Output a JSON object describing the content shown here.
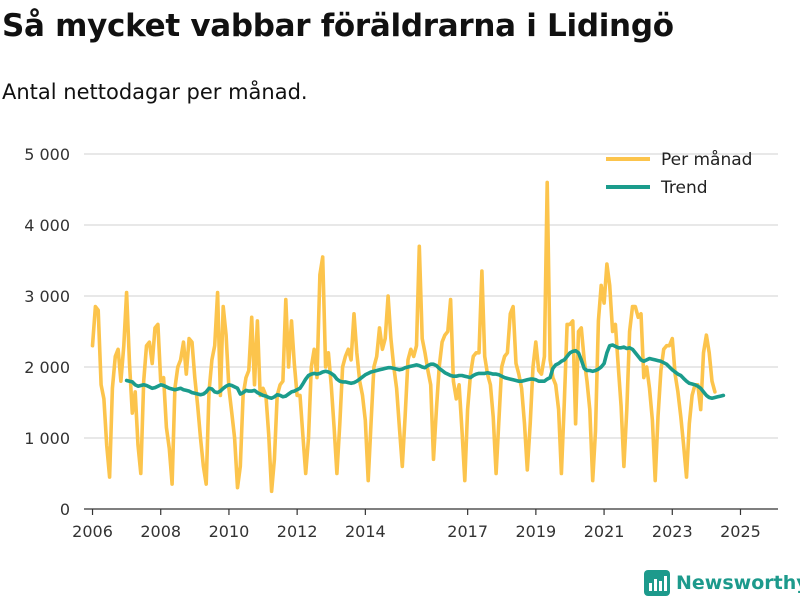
{
  "header": {
    "title": "Så mycket vabbar föräldrarna i Lidingö",
    "subtitle": "Antal nettodagar per månad."
  },
  "brand": {
    "name": "Newsworthy",
    "color": "#1d9a8c"
  },
  "chart_data": {
    "type": "line",
    "title": "Så mycket vabbar föräldrarna i Lidingö",
    "subtitle": "Antal nettodagar per månad.",
    "xlabel": "",
    "ylabel": "",
    "xlim": [
      2005.75,
      2026.1
    ],
    "ylim": [
      0,
      5000
    ],
    "yticks": [
      {
        "value": 0,
        "label": "0"
      },
      {
        "value": 1000,
        "label": "1 000"
      },
      {
        "value": 2000,
        "label": "2 000"
      },
      {
        "value": 3000,
        "label": "3 000"
      },
      {
        "value": 4000,
        "label": "4 000"
      },
      {
        "value": 5000,
        "label": "5 000"
      }
    ],
    "xticks": [
      {
        "value": 2006,
        "label": "2006"
      },
      {
        "value": 2008,
        "label": "2008"
      },
      {
        "value": 2010,
        "label": "2010"
      },
      {
        "value": 2012,
        "label": "2012"
      },
      {
        "value": 2014,
        "label": "2014"
      },
      {
        "value": 2017,
        "label": "2017"
      },
      {
        "value": 2019,
        "label": "2019"
      },
      {
        "value": 2021,
        "label": "2021"
      },
      {
        "value": 2023,
        "label": "2023"
      },
      {
        "value": 2025,
        "label": "2025"
      }
    ],
    "grid": true,
    "legend_position": "top-right",
    "series": [
      {
        "name": "Per månad",
        "color": "#fcc44c",
        "start": 2006.0,
        "step": 0.08333,
        "values": [
          2300,
          2850,
          2800,
          1750,
          1550,
          900,
          450,
          1700,
          2150,
          2250,
          1800,
          2300,
          3050,
          2050,
          1350,
          1650,
          900,
          500,
          1800,
          2300,
          2350,
          2050,
          2550,
          2600,
          1800,
          1850,
          1150,
          850,
          350,
          1700,
          2000,
          2100,
          2350,
          1900,
          2400,
          2350,
          1850,
          1450,
          1000,
          600,
          350,
          1650,
          2100,
          2300,
          3050,
          1600,
          2850,
          2450,
          1700,
          1350,
          1000,
          300,
          600,
          1600,
          1850,
          1950,
          2700,
          1750,
          2650,
          1600,
          1700,
          1600,
          1050,
          250,
          700,
          1600,
          1750,
          1800,
          2950,
          2000,
          2650,
          2050,
          1600,
          1600,
          1050,
          500,
          1000,
          2000,
          2250,
          1850,
          3300,
          3550,
          2000,
          2200,
          1750,
          1150,
          500,
          1200,
          2000,
          2150,
          2250,
          2100,
          2750,
          2200,
          1800,
          1600,
          1250,
          400,
          1200,
          2000,
          2150,
          2550,
          2250,
          2400,
          3000,
          2400,
          2000,
          1700,
          1150,
          600,
          1300,
          2100,
          2250,
          2150,
          2300,
          3700,
          2400,
          2200,
          1950,
          1750,
          700,
          1400,
          2000,
          2350,
          2450,
          2500,
          2950,
          1800,
          1550,
          1750,
          1100,
          400,
          1400,
          1900,
          2150,
          2200,
          2200,
          3350,
          2150,
          1900,
          1750,
          1300,
          500,
          1250,
          2000,
          2150,
          2200,
          2750,
          2850,
          2050,
          1900,
          1700,
          1200,
          550,
          1200,
          2000,
          2350,
          1950,
          1900,
          2150,
          4600,
          2100,
          1850,
          1750,
          1400,
          500,
          1500,
          2600,
          2600,
          2650,
          1200,
          2500,
          2550,
          2100,
          1800,
          1400,
          400,
          1100,
          2650,
          3150,
          2900,
          3450,
          3150,
          2500,
          2600,
          2000,
          1450,
          600,
          1400,
          2500,
          2850,
          2850,
          2700,
          2750,
          1850,
          2000,
          1700,
          1250,
          400,
          1300,
          1950,
          2250,
          2300,
          2300,
          2400,
          1900,
          1650,
          1300,
          900,
          450,
          1200,
          1600,
          1750,
          1750,
          1400,
          2200,
          2450,
          2200,
          1800,
          1650
        ]
      },
      {
        "name": "Trend",
        "color": "#1b9c8c",
        "start": 2007.0,
        "step": 0.08333,
        "values": [
          1810,
          1800,
          1790,
          1750,
          1730,
          1740,
          1750,
          1740,
          1720,
          1700,
          1710,
          1730,
          1750,
          1740,
          1720,
          1700,
          1690,
          1680,
          1690,
          1700,
          1680,
          1670,
          1660,
          1640,
          1630,
          1620,
          1610,
          1620,
          1650,
          1700,
          1690,
          1650,
          1640,
          1660,
          1700,
          1730,
          1750,
          1740,
          1720,
          1700,
          1620,
          1640,
          1670,
          1660,
          1660,
          1670,
          1640,
          1620,
          1600,
          1590,
          1570,
          1560,
          1580,
          1610,
          1600,
          1580,
          1590,
          1620,
          1650,
          1660,
          1680,
          1700,
          1760,
          1830,
          1880,
          1900,
          1910,
          1900,
          1910,
          1930,
          1940,
          1930,
          1910,
          1880,
          1830,
          1800,
          1790,
          1790,
          1780,
          1770,
          1780,
          1800,
          1830,
          1860,
          1890,
          1910,
          1930,
          1940,
          1950,
          1960,
          1970,
          1980,
          1990,
          1990,
          1980,
          1970,
          1960,
          1970,
          1990,
          2000,
          2010,
          2020,
          2030,
          2020,
          2000,
          1990,
          2020,
          2040,
          2040,
          2020,
          1980,
          1950,
          1920,
          1900,
          1880,
          1870,
          1870,
          1880,
          1880,
          1870,
          1860,
          1850,
          1880,
          1900,
          1910,
          1910,
          1910,
          1920,
          1910,
          1900,
          1900,
          1890,
          1870,
          1850,
          1840,
          1830,
          1820,
          1810,
          1800,
          1800,
          1810,
          1820,
          1830,
          1830,
          1820,
          1800,
          1800,
          1800,
          1830,
          1850,
          1980,
          2030,
          2050,
          2080,
          2100,
          2150,
          2200,
          2220,
          2230,
          2200,
          2100,
          1980,
          1950,
          1950,
          1940,
          1950,
          1970,
          2000,
          2050,
          2200,
          2300,
          2310,
          2290,
          2270,
          2270,
          2280,
          2260,
          2270,
          2250,
          2200,
          2150,
          2100,
          2080,
          2100,
          2120,
          2110,
          2100,
          2090,
          2080,
          2060,
          2040,
          2000,
          1960,
          1930,
          1900,
          1880,
          1840,
          1800,
          1770,
          1760,
          1750,
          1730,
          1700,
          1650,
          1600,
          1570,
          1560,
          1570,
          1580,
          1590,
          1600
        ]
      }
    ]
  }
}
